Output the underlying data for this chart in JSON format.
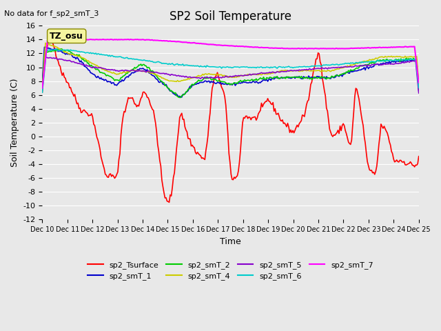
{
  "title": "SP2 Soil Temperature",
  "no_data_text": "No data for f_sp2_smT_3",
  "xlabel": "Time",
  "ylabel": "Soil Temperature (C)",
  "ylim": [
    -12,
    16
  ],
  "yticks": [
    -12,
    -10,
    -8,
    -6,
    -4,
    -2,
    0,
    2,
    4,
    6,
    8,
    10,
    12,
    14,
    16
  ],
  "tz_label": "TZ_osu",
  "bg_color": "#e8e8e8",
  "plot_bg_color": "#e8e8e8",
  "series": {
    "sp2_Tsurface": {
      "color": "#ff0000",
      "lw": 1.2
    },
    "sp2_smT_1": {
      "color": "#0000cc",
      "lw": 1.2
    },
    "sp2_smT_2": {
      "color": "#00cc00",
      "lw": 1.2
    },
    "sp2_smT_4": {
      "color": "#cccc00",
      "lw": 1.2
    },
    "sp2_smT_5": {
      "color": "#8800cc",
      "lw": 1.2
    },
    "sp2_smT_6": {
      "color": "#00cccc",
      "lw": 1.2
    },
    "sp2_smT_7": {
      "color": "#ff00ff",
      "lw": 1.5
    }
  }
}
